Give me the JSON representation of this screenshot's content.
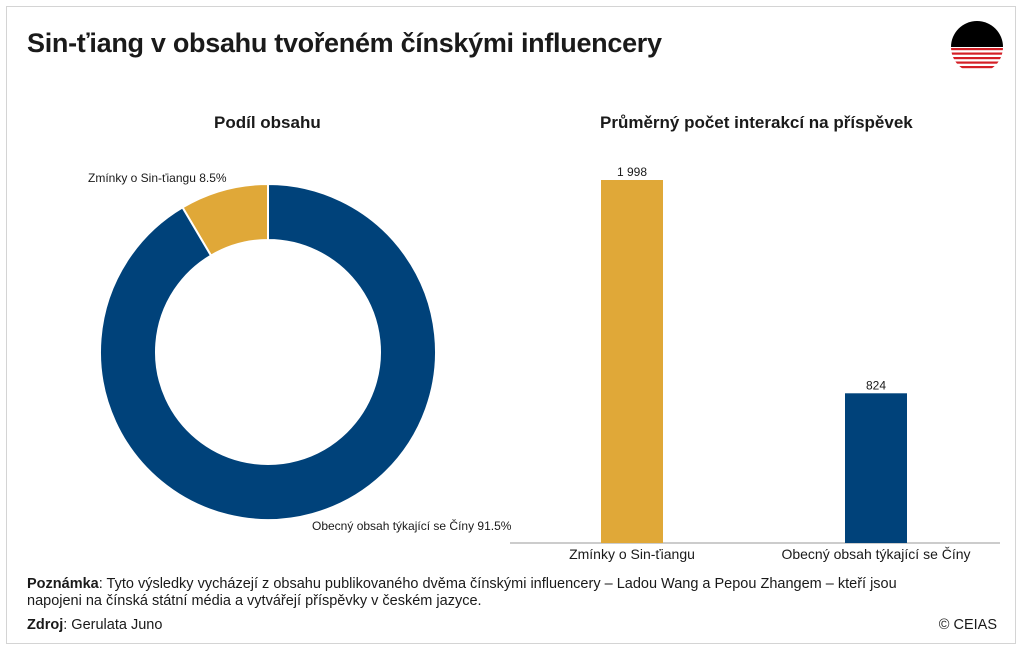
{
  "header": {
    "title": "Sin-ťiang v obsahu tvořeném čínskými influencery"
  },
  "colors": {
    "gold": "#E0A838",
    "navy": "#00427A"
  },
  "chart_data": [
    {
      "type": "pie",
      "title": "Podíl obsahu",
      "donut": true,
      "slices": [
        {
          "label": "Zmínky o Sin-ťiangu 8.5%",
          "value": 8.5,
          "color": "#E0A838"
        },
        {
          "label": "Obecný obsah týkající se Číny 91.5%",
          "value": 91.5,
          "color": "#00427A"
        }
      ]
    },
    {
      "type": "bar",
      "title": "Průměrný počet interakcí na příspěvek",
      "categories": [
        "Zmínky o Sin-ťiangu",
        "Obecný obsah týkající se Číny"
      ],
      "values": [
        1998,
        824
      ],
      "value_labels": [
        "1 998",
        "824"
      ],
      "colors": [
        "#E0A838",
        "#00427A"
      ],
      "ylim": [
        0,
        1998
      ],
      "grid": false
    }
  ],
  "footer": {
    "note_label": "Poznámka",
    "note_text": ": Tyto výsledky vycházejí z obsahu publikovaného dvěma čínskými influencery – Ladou Wang a Pepou Zhangem – kteří jsou napojeni na čínská státní média a vytvářejí příspěvky v českém jazyce.",
    "source_label": "Zdroj",
    "source_text": ": Gerulata Juno",
    "copyright": "© CEIAS"
  }
}
